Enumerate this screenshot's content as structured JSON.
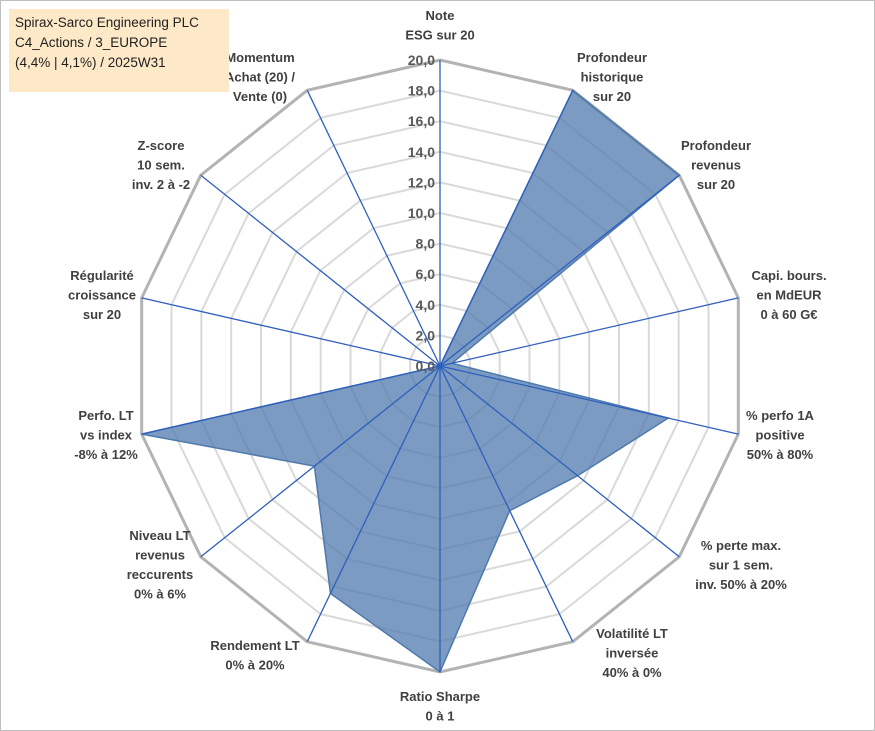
{
  "header": {
    "line1": "Spirax-Sarco Engineering PLC",
    "line2": "C4_Actions / 3_EUROPE",
    "line3": "(4,4% | 4,1%) / 2025W31"
  },
  "chart_data": {
    "type": "radar",
    "rmin": 0,
    "rmax": 20,
    "tick_step": 2,
    "ticks": [
      "0,0",
      "2,0",
      "4,0",
      "6,0",
      "8,0",
      "10,0",
      "12,0",
      "14,0",
      "16,0",
      "18,0",
      "20,0"
    ],
    "axes": [
      [
        "Note",
        "ESG sur 20"
      ],
      [
        "Profondeur",
        "historique",
        "sur 20"
      ],
      [
        "Profondeur",
        "revenus",
        "sur 20"
      ],
      [
        "Capi. bours.",
        "en MdEUR",
        "0 à 60 G€"
      ],
      [
        "% perfo 1A",
        "positive",
        "50% à 80%"
      ],
      [
        "% perte max.",
        "sur 1 sem.",
        "inv. 50% à 20%"
      ],
      [
        "Volatilité LT",
        "inversée",
        "40% à 0%"
      ],
      [
        "Ratio Sharpe",
        "0 à 1"
      ],
      [
        "Rendement LT",
        "0% à 20%"
      ],
      [
        "Niveau LT",
        "revenus",
        "reccurents",
        "0% à 6%"
      ],
      [
        "Perfo. LT",
        "vs index",
        "-8% à 12%"
      ],
      [
        "Régularité",
        "croissance",
        "sur 20"
      ],
      [
        "Z-score",
        "10 sem.",
        "inv. 2 à -2"
      ],
      [
        "Momentum",
        "Achat (20) /",
        "Vente (0)"
      ]
    ],
    "series": [
      {
        "values": [
          0,
          20,
          20,
          0.8,
          15.3,
          11.5,
          10.5,
          20,
          16.5,
          10.5,
          20,
          0,
          0,
          0
        ],
        "color": "#4f7aad"
      }
    ],
    "grid": true
  }
}
